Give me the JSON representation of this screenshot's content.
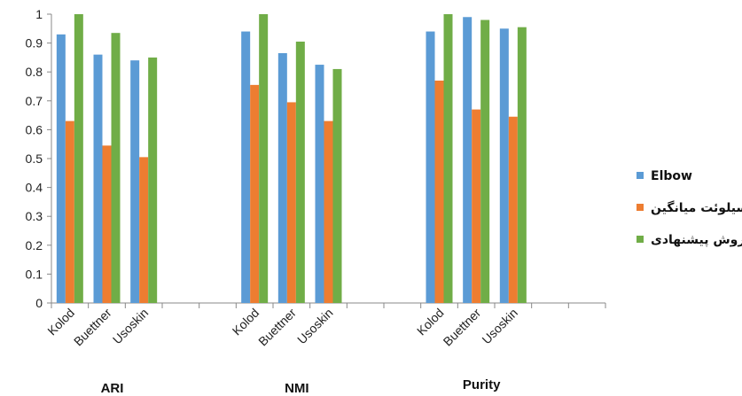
{
  "chart_data": {
    "type": "bar",
    "ylim": [
      0,
      1
    ],
    "yticks": [
      "0",
      "0.1",
      "0.2",
      "0.3",
      "0.4",
      "0.5",
      "0.6",
      "0.7",
      "0.8",
      "0.9",
      "1"
    ],
    "groups": [
      {
        "label": "ARI",
        "categories": [
          "Kolod",
          "Buettner",
          "Usoskin"
        ]
      },
      {
        "label": "NMI",
        "categories": [
          "Kolod",
          "Buettner",
          "Usoskin"
        ]
      },
      {
        "label": "Purity",
        "categories": [
          "Kolod",
          "Buettner",
          "Usoskin"
        ]
      }
    ],
    "series": [
      {
        "name": "Elbow",
        "color": "#5B9BD5",
        "values": [
          0.93,
          0.86,
          0.84,
          0.94,
          0.865,
          0.825,
          0.94,
          0.99,
          0.95
        ]
      },
      {
        "name": "سیلوئت میانگین",
        "color": "#ED7D31",
        "values": [
          0.63,
          0.545,
          0.505,
          0.755,
          0.695,
          0.63,
          0.77,
          0.67,
          0.645
        ]
      },
      {
        "name": "روش پیشنهادی",
        "color": "#70AD47",
        "values": [
          1.0,
          0.935,
          0.85,
          1.0,
          0.905,
          0.81,
          1.0,
          0.98,
          0.955
        ]
      }
    ],
    "legend_position": "right",
    "grid": false
  }
}
